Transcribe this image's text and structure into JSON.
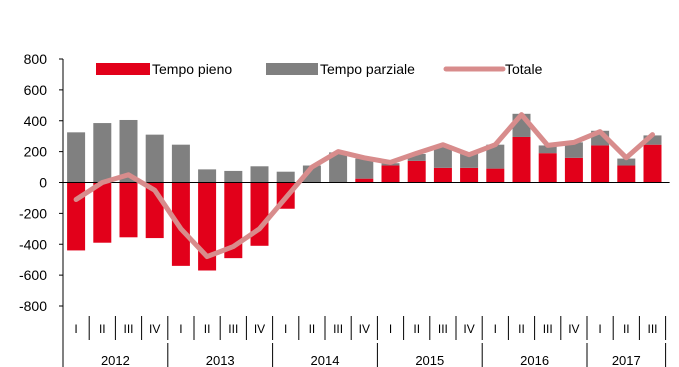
{
  "chart_data": {
    "type": "bar",
    "stacked": true,
    "quarters": [
      "I",
      "II",
      "III",
      "IV",
      "I",
      "II",
      "III",
      "IV",
      "I",
      "II",
      "III",
      "IV",
      "I",
      "II",
      "III",
      "IV",
      "I",
      "II",
      "III",
      "IV",
      "I",
      "II",
      "III"
    ],
    "years": [
      {
        "label": "2012",
        "quarters": 4
      },
      {
        "label": "2013",
        "quarters": 4
      },
      {
        "label": "2014",
        "quarters": 4
      },
      {
        "label": "2015",
        "quarters": 4
      },
      {
        "label": "2016",
        "quarters": 4
      },
      {
        "label": "2017",
        "quarters": 3
      }
    ],
    "series": [
      {
        "name": "Tempo pieno",
        "kind": "bar",
        "color": "#e2001a",
        "values": [
          -440,
          -390,
          -355,
          -360,
          -540,
          -570,
          -490,
          -410,
          -170,
          0,
          0,
          25,
          110,
          140,
          95,
          95,
          90,
          295,
          190,
          160,
          240,
          110,
          245
        ]
      },
      {
        "name": "Tempo parziale",
        "kind": "bar",
        "color": "#808080",
        "values": [
          325,
          385,
          405,
          310,
          245,
          85,
          75,
          105,
          70,
          110,
          195,
          130,
          15,
          45,
          145,
          100,
          155,
          150,
          50,
          100,
          95,
          45,
          60
        ]
      },
      {
        "name": "Totale",
        "kind": "line",
        "color": "#d88c8c",
        "values": [
          -110,
          0,
          50,
          -50,
          -300,
          -480,
          -415,
          -300,
          -100,
          100,
          200,
          160,
          130,
          190,
          245,
          180,
          245,
          440,
          240,
          260,
          330,
          160,
          310
        ]
      }
    ],
    "yticks": [
      800,
      600,
      400,
      200,
      0,
      -200,
      -400,
      -600,
      -800
    ],
    "ylim": [
      -800,
      800
    ],
    "legend_position": "top"
  }
}
